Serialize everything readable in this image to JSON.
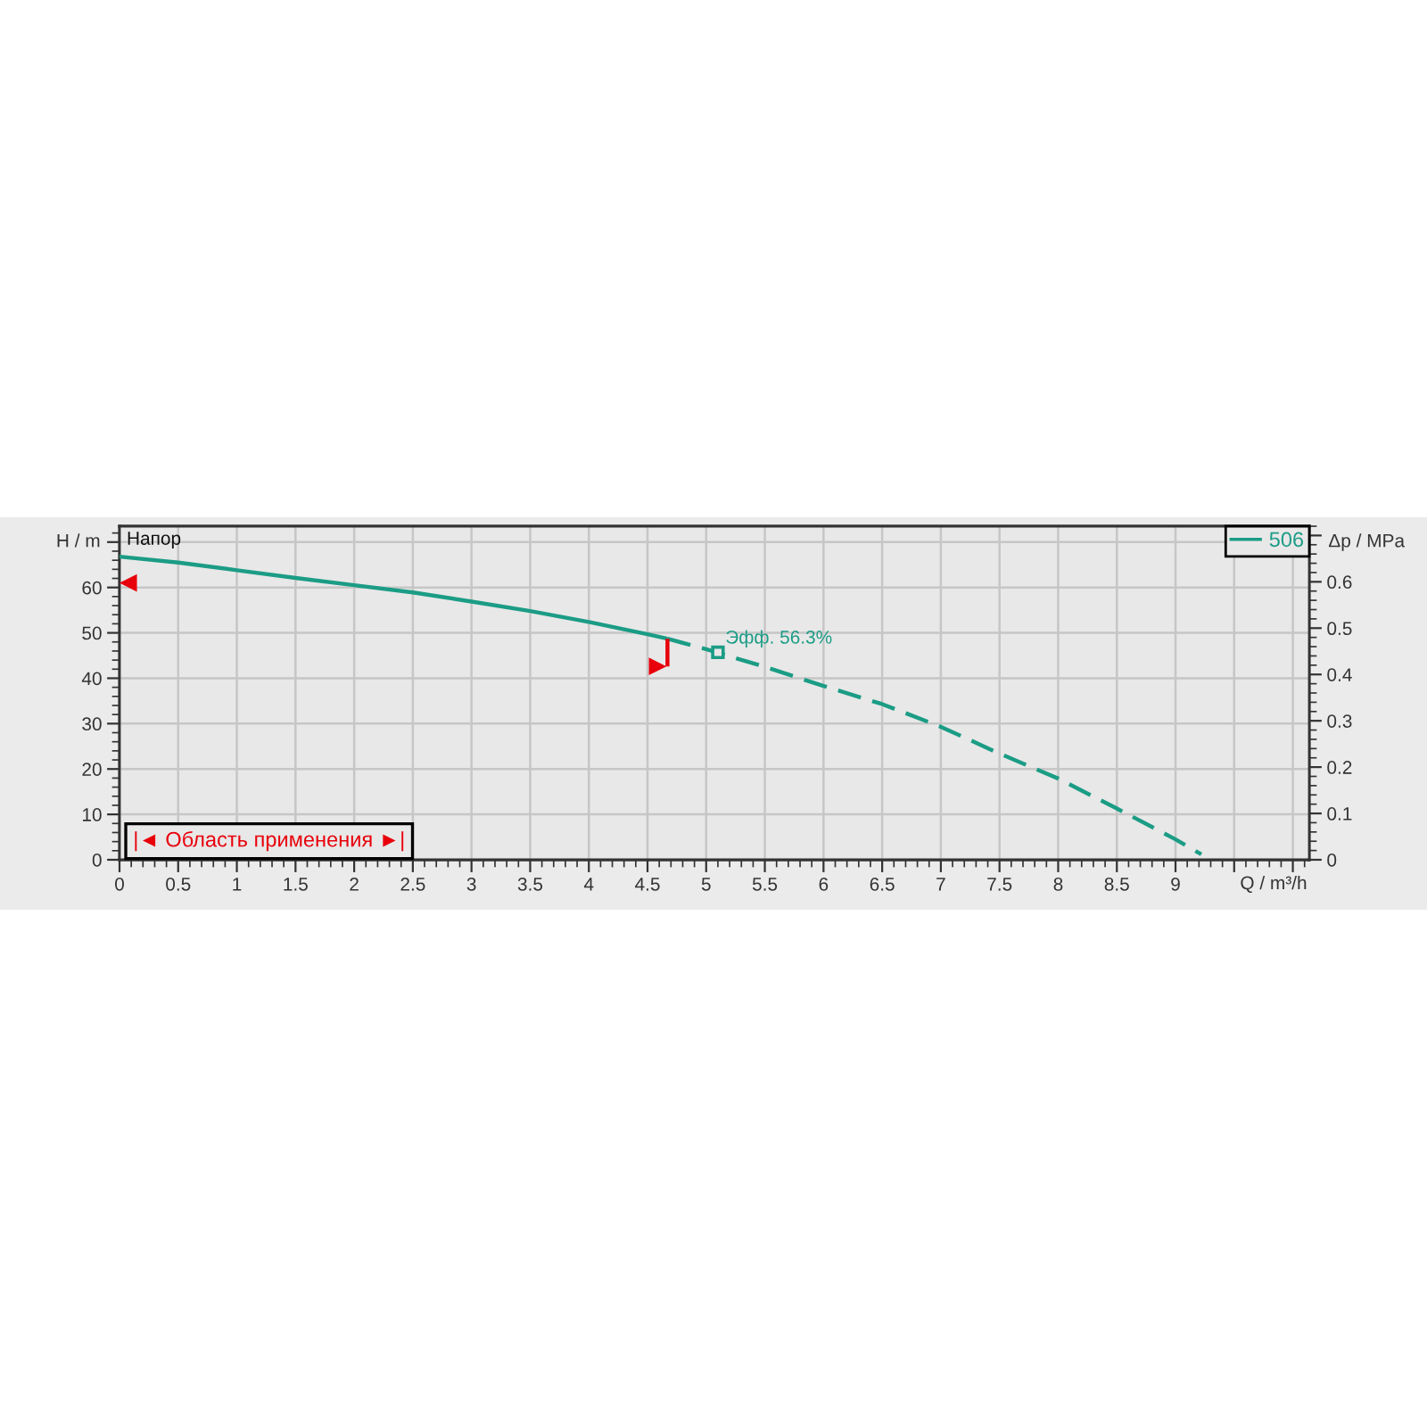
{
  "chart_data": {
    "type": "line",
    "title": "Напор",
    "xlabel": "Q / m³/h",
    "ylabel": "H / m",
    "y2label": "Δp / MPa",
    "xlim": [
      0,
      10.14
    ],
    "xticks": [
      0,
      0.5,
      1,
      1.5,
      2,
      2.5,
      3,
      3.5,
      4,
      4.5,
      5,
      5.5,
      6,
      6.5,
      7,
      7.5,
      8,
      8.5,
      9,
      {
        "value": 9.5,
        "label": null
      },
      {
        "value": 10,
        "label": null
      }
    ],
    "ylim": [
      0,
      73.5
    ],
    "yticks": [
      0,
      10,
      20,
      30,
      40,
      50,
      60,
      {
        "value": 70,
        "label": null
      }
    ],
    "y2lim": [
      0,
      0.72
    ],
    "y2ticks": [
      0,
      0.1,
      0.2,
      0.3,
      0.4,
      0.5,
      0.6,
      {
        "value": 0.7,
        "label": null
      }
    ],
    "grid": true,
    "legend": "top right",
    "series": [
      {
        "name": "506",
        "color": "#1b9c85",
        "line_style": "solid",
        "x": [
          0,
          0.5,
          1,
          1.5,
          2,
          2.5,
          3,
          3.5,
          4,
          4.5,
          4.67
        ],
        "values": [
          66.8,
          65.5,
          63.8,
          62.1,
          60.5,
          58.9,
          56.9,
          54.8,
          52.4,
          49.7,
          48.7
        ]
      },
      {
        "color": "#1b9c85",
        "line_style": "dashed",
        "x": [
          4.67,
          5,
          5.5,
          6,
          6.5,
          7,
          7.5,
          8,
          8.5,
          9,
          9.22
        ],
        "values": [
          48.7,
          46.4,
          42.5,
          38.3,
          34.3,
          29.3,
          23.4,
          17.9,
          11.3,
          4.5,
          1.2
        ]
      },
      {
        "type": "scatter",
        "color": "#1b9c85",
        "marker": "square",
        "x": [
          5.1
        ],
        "values": [
          45.7
        ]
      },
      {
        "type": "scatter",
        "color": "#e8000b",
        "marker": "triangle",
        "x": [
          0.08,
          4.58
        ],
        "values": [
          61,
          42.6
        ]
      },
      {
        "color": "#e8000b",
        "line_style": "solid",
        "x": [
          4.67,
          4.67
        ],
        "values": [
          42.6,
          48.7
        ]
      }
    ],
    "annotations": [
      {
        "text": "Эфф. 56.3%",
        "x": 5.1,
        "y": 45.7
      },
      "|◄ Область применения ►|"
    ]
  }
}
